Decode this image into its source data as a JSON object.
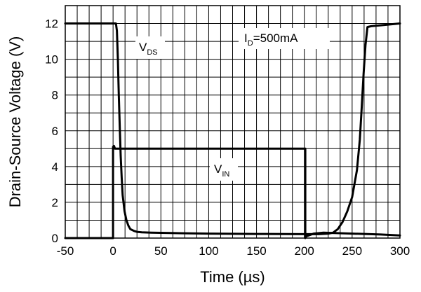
{
  "chart_data": {
    "type": "line",
    "xlabel": "Time (µs)",
    "ylabel": "Drain-Source Voltage (V)",
    "xlim": [
      -50,
      300
    ],
    "ylim": [
      0,
      13
    ],
    "x_ticks": [
      -50,
      0,
      50,
      100,
      150,
      200,
      250,
      300
    ],
    "y_ticks": [
      0,
      2,
      4,
      6,
      8,
      10,
      12
    ],
    "x_tick_labels": [
      "-50",
      "0",
      "50",
      "100",
      "150",
      "200",
      "250",
      "300"
    ],
    "y_tick_labels": [
      "0",
      "2",
      "4",
      "6",
      "8",
      "10",
      "12"
    ],
    "x_minor_step": 12.5,
    "y_minor_step": 1,
    "grid": true,
    "annotations": [
      {
        "main": "V",
        "sub": "DS",
        "suffix": ""
      },
      {
        "main": "V",
        "sub": "IN",
        "suffix": ""
      },
      {
        "main": "I",
        "sub": "D",
        "suffix": "=500mA"
      }
    ],
    "series": [
      {
        "x": [
          -50,
          0,
          3,
          4,
          5,
          6,
          7,
          8,
          9,
          10,
          12,
          14,
          16,
          18,
          20,
          22,
          25,
          30,
          40,
          60,
          100,
          150,
          200,
          215,
          225,
          230,
          235,
          240,
          245,
          250,
          255,
          258,
          260,
          262,
          264,
          266,
          270,
          280,
          300
        ],
        "y": [
          12,
          12,
          12,
          11.6,
          10,
          8,
          6.2,
          4.6,
          3.4,
          2.4,
          1.5,
          1.0,
          0.7,
          0.5,
          0.45,
          0.4,
          0.35,
          0.32,
          0.3,
          0.28,
          0.25,
          0.23,
          0.22,
          0.22,
          0.25,
          0.3,
          0.5,
          0.9,
          1.5,
          2.3,
          3.8,
          5.5,
          7.3,
          9.2,
          10.8,
          11.8,
          11.85,
          11.9,
          12
        ]
      },
      {
        "x": [
          -50,
          0,
          0,
          1,
          2,
          5,
          10,
          200,
          201,
          201,
          202,
          210,
          220,
          250,
          280,
          300
        ],
        "y": [
          0,
          0,
          5.1,
          5.15,
          5.0,
          5.0,
          5.0,
          5.0,
          5.0,
          0,
          0.1,
          0.25,
          0.3,
          0.25,
          0.2,
          0.15
        ]
      }
    ]
  }
}
